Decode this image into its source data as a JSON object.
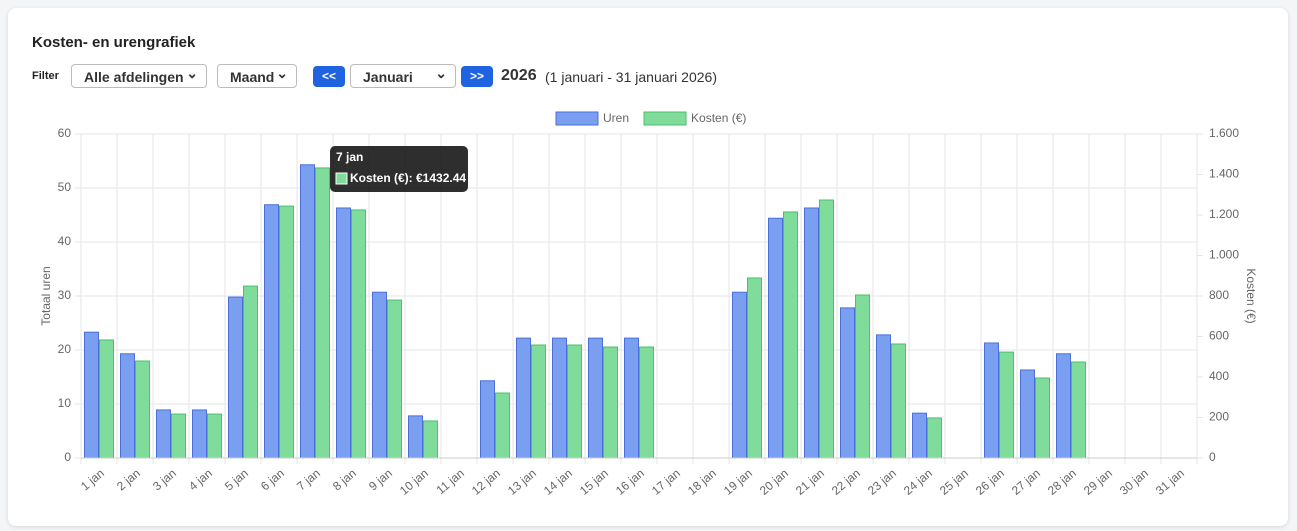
{
  "header": {
    "title": "Kosten- en urengrafiek"
  },
  "filters": {
    "label": "Filter",
    "department": "Alle afdelingen",
    "period": "Maand",
    "prev": "<<",
    "month": "Januari",
    "next": ">>",
    "year": "2026",
    "range": "(1 januari - 31 januari 2026)"
  },
  "chart_data": {
    "type": "bar",
    "categories": [
      "1 jan",
      "2 jan",
      "3 jan",
      "4 jan",
      "5 jan",
      "6 jan",
      "7 jan",
      "8 jan",
      "9 jan",
      "10 jan",
      "11 jan",
      "12 jan",
      "13 jan",
      "14 jan",
      "15 jan",
      "16 jan",
      "17 jan",
      "18 jan",
      "19 jan",
      "20 jan",
      "21 jan",
      "22 jan",
      "23 jan",
      "24 jan",
      "25 jan",
      "26 jan",
      "27 jan",
      "28 jan",
      "29 jan",
      "30 jan",
      "31 jan"
    ],
    "series": [
      {
        "name": "Uren",
        "color": "#7b9ff0",
        "values": [
          23.3,
          19.3,
          8.9,
          8.9,
          29.8,
          46.9,
          54.3,
          46.3,
          30.7,
          7.8,
          0,
          14.3,
          22.2,
          22.2,
          22.2,
          22.2,
          0,
          0,
          30.7,
          44.4,
          46.3,
          27.8,
          22.8,
          8.3,
          0,
          21.3,
          16.3,
          19.3,
          0,
          0,
          0
        ]
      },
      {
        "name": "Kosten (€)",
        "color": "#7fdc9b",
        "axis": "y2",
        "values": [
          583,
          479,
          217,
          217,
          849,
          1244,
          1432.44,
          1225,
          780,
          183,
          0,
          321,
          558,
          558,
          548,
          548,
          0,
          0,
          889,
          1215,
          1274,
          805,
          563,
          198,
          0,
          523,
          395,
          474,
          0,
          0,
          0
        ]
      }
    ],
    "ylabel": "Totaal uren",
    "y2label": "Kosten (€)",
    "ylim": [
      0,
      60
    ],
    "yticks": [
      0,
      10,
      20,
      30,
      40,
      50,
      60
    ],
    "y2lim": [
      0,
      1600
    ],
    "y2ticks": [
      0,
      200,
      400,
      600,
      800,
      {
        "value": 1000,
        "label": "1.000"
      },
      {
        "value": 1200,
        "label": "1.200"
      },
      {
        "value": 1400,
        "label": "1.400"
      },
      {
        "value": 1600,
        "label": "1.600"
      }
    ],
    "grid": true,
    "legend": "top",
    "tooltip": {
      "title": "7 jan",
      "label": "Kosten (€): €1432.44"
    }
  }
}
